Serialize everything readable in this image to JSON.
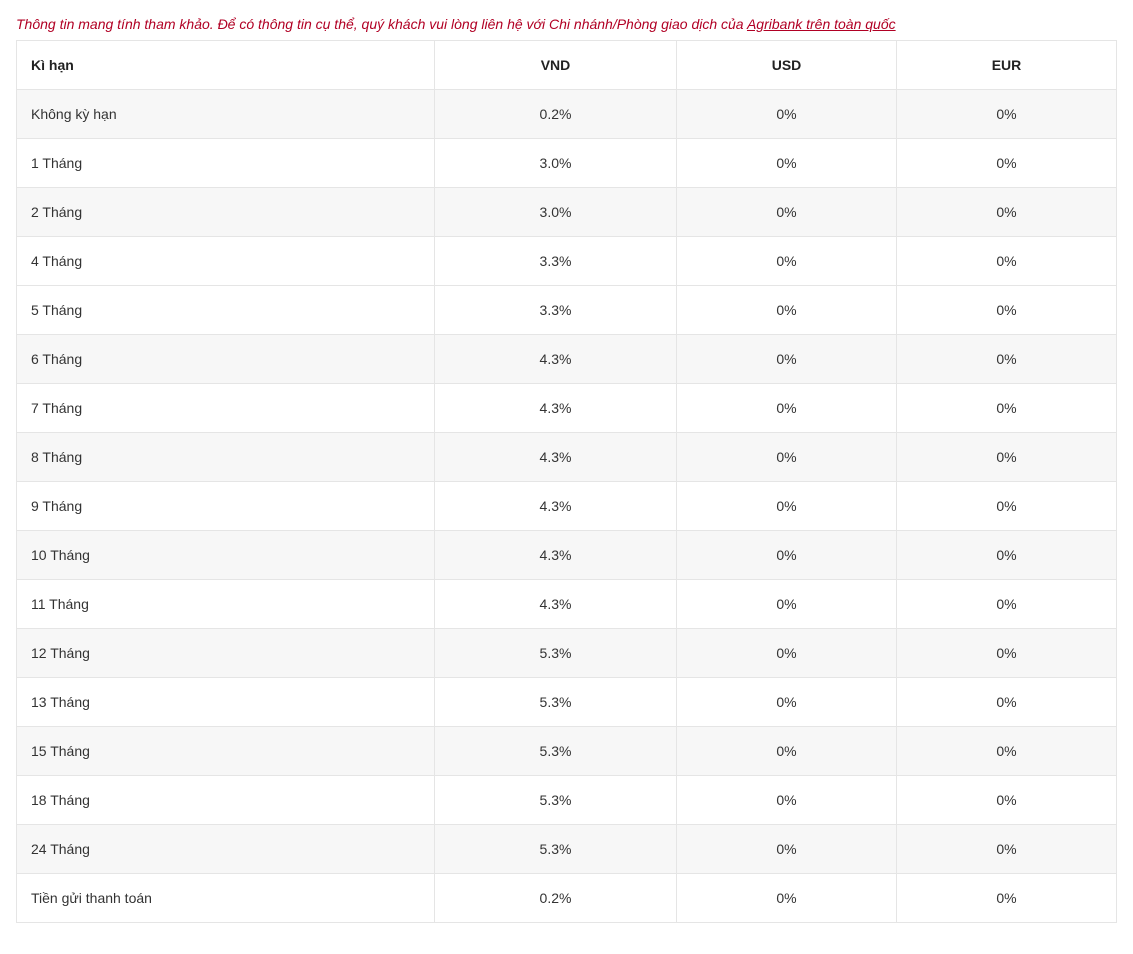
{
  "notice": {
    "prefix": "Thông tin mang tính tham khảo. Để có thông tin cụ thể, quý khách vui lòng liên hệ với Chi nhánh/Phòng giao dịch của ",
    "link_text": "Agribank trên toàn quốc",
    "color": "#b10024",
    "font_style": "italic",
    "font_size": 14
  },
  "table": {
    "type": "table",
    "border_color": "#e5e5e5",
    "stripe_color": "#f7f7f7",
    "background_color": "#ffffff",
    "text_color": "#333333",
    "header_weight": "bold",
    "font_size": 14,
    "columns": [
      {
        "key": "term",
        "label": "Kì hạn",
        "align": "left",
        "width": "38%"
      },
      {
        "key": "vnd",
        "label": "VND",
        "align": "center",
        "width": "22%"
      },
      {
        "key": "usd",
        "label": "USD",
        "align": "center",
        "width": "20%"
      },
      {
        "key": "eur",
        "label": "EUR",
        "align": "center",
        "width": "20%"
      }
    ],
    "rows": [
      {
        "term": "Không kỳ hạn",
        "vnd": "0.2%",
        "usd": "0%",
        "eur": "0%",
        "stripe": true
      },
      {
        "term": "1 Tháng",
        "vnd": "3.0%",
        "usd": "0%",
        "eur": "0%",
        "stripe": false
      },
      {
        "term": "2 Tháng",
        "vnd": "3.0%",
        "usd": "0%",
        "eur": "0%",
        "stripe": true
      },
      {
        "term": "4 Tháng",
        "vnd": "3.3%",
        "usd": "0%",
        "eur": "0%",
        "stripe": false
      },
      {
        "term": "5 Tháng",
        "vnd": "3.3%",
        "usd": "0%",
        "eur": "0%",
        "stripe": false
      },
      {
        "term": "6 Tháng",
        "vnd": "4.3%",
        "usd": "0%",
        "eur": "0%",
        "stripe": true
      },
      {
        "term": "7 Tháng",
        "vnd": "4.3%",
        "usd": "0%",
        "eur": "0%",
        "stripe": false
      },
      {
        "term": "8 Tháng",
        "vnd": "4.3%",
        "usd": "0%",
        "eur": "0%",
        "stripe": true
      },
      {
        "term": "9 Tháng",
        "vnd": "4.3%",
        "usd": "0%",
        "eur": "0%",
        "stripe": false
      },
      {
        "term": "10 Tháng",
        "vnd": "4.3%",
        "usd": "0%",
        "eur": "0%",
        "stripe": true
      },
      {
        "term": "11 Tháng",
        "vnd": "4.3%",
        "usd": "0%",
        "eur": "0%",
        "stripe": false
      },
      {
        "term": "12 Tháng",
        "vnd": "5.3%",
        "usd": "0%",
        "eur": "0%",
        "stripe": true
      },
      {
        "term": "13 Tháng",
        "vnd": "5.3%",
        "usd": "0%",
        "eur": "0%",
        "stripe": false
      },
      {
        "term": "15 Tháng",
        "vnd": "5.3%",
        "usd": "0%",
        "eur": "0%",
        "stripe": true
      },
      {
        "term": "18 Tháng",
        "vnd": "5.3%",
        "usd": "0%",
        "eur": "0%",
        "stripe": false
      },
      {
        "term": "24 Tháng",
        "vnd": "5.3%",
        "usd": "0%",
        "eur": "0%",
        "stripe": true
      },
      {
        "term": "Tiền gửi thanh toán",
        "vnd": "0.2%",
        "usd": "0%",
        "eur": "0%",
        "stripe": false
      }
    ]
  }
}
